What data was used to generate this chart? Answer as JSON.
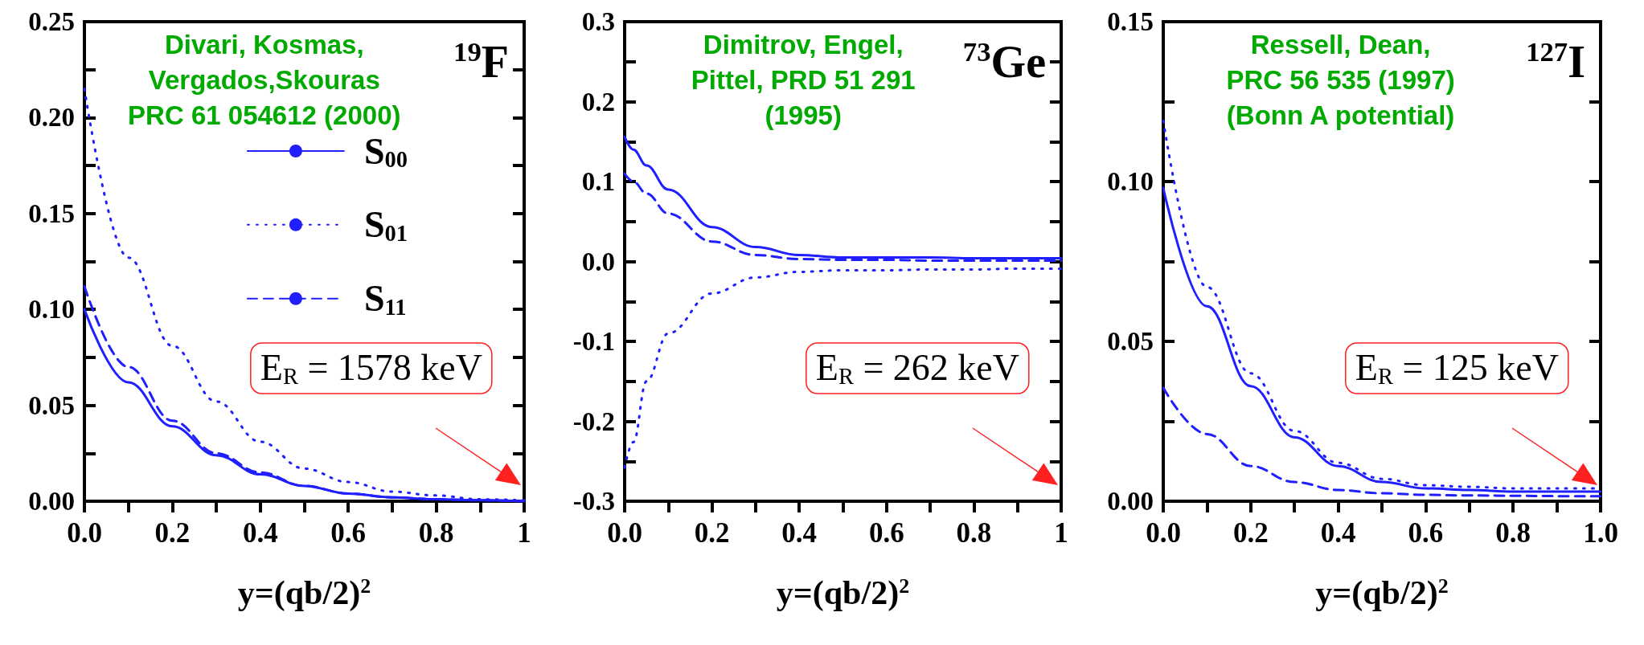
{
  "chart_data": [
    {
      "type": "line",
      "title": "$^{19}$F",
      "xlabel": "y=(qb/2)$^{2}$",
      "annotations": [
        "Divari, Kosmas,\nVergados,Skouras\nPRC 61 054612 (2000)",
        "E$_{R}$ = 1578 keV"
      ],
      "legend": "top right",
      "marker": "none",
      "x": [
        0,
        0.1,
        0.2,
        0.3,
        0.4,
        0.5,
        0.6,
        0.7,
        0.8,
        0.9,
        1
      ],
      "series": [
        {
          "name": "S$_{00}$",
          "color": "#1f1fff",
          "line_style": "solid",
          "values": [
            0.1,
            0.062,
            0.039,
            0.024,
            0.014,
            0.008,
            0.004,
            0.002,
            0.001,
            0.0005,
            0
          ]
        },
        {
          "name": "S$_{01}$",
          "color": "#1f1fff",
          "line_style": "dotted",
          "values": [
            0.215,
            0.127,
            0.081,
            0.052,
            0.031,
            0.017,
            0.01,
            0.005,
            0.003,
            0.001,
            0.0005
          ]
        },
        {
          "name": "S$_{11}$",
          "color": "#1f1fff",
          "line_style": "dashed",
          "values": [
            0.112,
            0.07,
            0.042,
            0.025,
            0.015,
            0.008,
            0.004,
            0.002,
            0.001,
            0.0005,
            0
          ]
        }
      ],
      "xlim": [
        0,
        1
      ],
      "xticks": [
        {
          "value": 0,
          "label": "0.0"
        },
        {
          "value": 0.1,
          "label": null
        },
        {
          "value": 0.2,
          "label": "0.2"
        },
        {
          "value": 0.3,
          "label": null
        },
        {
          "value": 0.4,
          "label": "0.4"
        },
        {
          "value": 0.5,
          "label": null
        },
        {
          "value": 0.6,
          "label": "0.6"
        },
        {
          "value": 0.7,
          "label": null
        },
        {
          "value": 0.8,
          "label": "0.8"
        },
        {
          "value": 0.9,
          "label": null
        },
        1
      ],
      "ylim": [
        0,
        0.25
      ],
      "yticks": [
        {
          "value": 0,
          "label": "0.00"
        },
        {
          "value": 0.025,
          "label": null
        },
        0.05,
        {
          "value": 0.075,
          "label": null
        },
        {
          "value": 0.1,
          "label": "0.10"
        },
        {
          "value": 0.125,
          "label": null
        },
        0.15,
        {
          "value": 0.175,
          "label": null
        },
        {
          "value": 0.2,
          "label": "0.20"
        },
        {
          "value": 0.225,
          "label": null
        },
        0.25
      ]
    },
    {
      "type": "line",
      "title": "$^{73}$Ge",
      "xlabel": "y=(qb/2)$^{2}$",
      "annotations": [
        "Dimitrov, Engel,\nPittel, PRD 51 291\n(1995)",
        "E$_{R}$ = 262 keV"
      ],
      "marker": "none",
      "x": [
        0,
        0.02,
        0.05,
        0.1,
        0.2,
        0.3,
        0.4,
        0.5,
        0.6,
        0.7,
        0.8,
        0.9,
        1
      ],
      "series": [
        {
          "color": "#1f1fff",
          "line_style": "solid",
          "values": [
            0.156,
            0.14,
            0.12,
            0.09,
            0.043,
            0.018,
            0.008,
            0.005,
            0.005,
            0.005,
            0.004,
            0.004,
            0.004
          ]
        },
        {
          "color": "#1f1fff",
          "line_style": "dotted",
          "values": [
            -0.258,
            -0.226,
            -0.15,
            -0.09,
            -0.04,
            -0.02,
            -0.013,
            -0.011,
            -0.011,
            -0.01,
            -0.01,
            -0.009,
            -0.009
          ]
        },
        {
          "color": "#1f1fff",
          "line_style": "dashed",
          "values": [
            0.11,
            0.1,
            0.085,
            0.06,
            0.025,
            0.008,
            0.003,
            0.002,
            0.002,
            0.001,
            0.001,
            0.001,
            0.001
          ]
        }
      ],
      "xlim": [
        0,
        1
      ],
      "xticks": [
        {
          "value": 0,
          "label": "0.0"
        },
        {
          "value": 0.1,
          "label": null
        },
        {
          "value": 0.2,
          "label": "0.2"
        },
        {
          "value": 0.3,
          "label": null
        },
        {
          "value": 0.4,
          "label": "0.4"
        },
        {
          "value": 0.5,
          "label": null
        },
        {
          "value": 0.6,
          "label": "0.6"
        },
        {
          "value": 0.7,
          "label": null
        },
        {
          "value": 0.8,
          "label": "0.8"
        },
        {
          "value": 0.9,
          "label": null
        },
        1
      ],
      "ylim": [
        -0.3,
        0.3
      ],
      "yticks": [
        -0.3,
        {
          "value": -0.25,
          "label": null
        },
        -0.2,
        {
          "value": -0.15,
          "label": null
        },
        -0.1,
        {
          "value": -0.05,
          "label": null
        },
        {
          "value": 0,
          "label": "0.0"
        },
        {
          "value": 0.05,
          "label": null
        },
        0.1,
        {
          "value": 0.15,
          "label": null
        },
        0.2,
        {
          "value": 0.25,
          "label": null
        },
        0.3
      ]
    },
    {
      "type": "line",
      "title": "$^{127}$I",
      "xlabel": "y=(qb/2)$^{2}$",
      "annotations": [
        "Ressell, Dean,\nPRC 56 535 (1997)\n(Bonn A potential)",
        "E$_{R}$ = 125 keV"
      ],
      "marker": "none",
      "x": [
        0,
        0.1,
        0.2,
        0.3,
        0.4,
        0.5,
        0.6,
        0.7,
        0.8,
        0.9,
        1
      ],
      "series": [
        {
          "color": "#1f1fff",
          "line_style": "solid",
          "values": [
            0.098,
            0.061,
            0.036,
            0.02,
            0.011,
            0.006,
            0.004,
            0.0035,
            0.003,
            0.003,
            0.003
          ]
        },
        {
          "color": "#1f1fff",
          "line_style": "dotted",
          "values": [
            0.119,
            0.067,
            0.04,
            0.022,
            0.012,
            0.007,
            0.005,
            0.0045,
            0.004,
            0.004,
            0.004
          ]
        },
        {
          "color": "#1f1fff",
          "line_style": "dashed",
          "values": [
            0.0355,
            0.021,
            0.011,
            0.006,
            0.0035,
            0.0025,
            0.002,
            0.0018,
            0.0017,
            0.0016,
            0.0016
          ]
        }
      ],
      "xlim": [
        0,
        1
      ],
      "xticks": [
        {
          "value": 0,
          "label": "0.0"
        },
        {
          "value": 0.1,
          "label": null
        },
        {
          "value": 0.2,
          "label": "0.2"
        },
        {
          "value": 0.3,
          "label": null
        },
        {
          "value": 0.4,
          "label": "0.4"
        },
        {
          "value": 0.5,
          "label": null
        },
        {
          "value": 0.6,
          "label": "0.6"
        },
        {
          "value": 0.7,
          "label": null
        },
        {
          "value": 0.8,
          "label": "0.8"
        },
        {
          "value": 0.9,
          "label": null
        },
        {
          "value": 1,
          "label": "1.0"
        }
      ],
      "ylim": [
        0,
        0.15
      ],
      "yticks": [
        {
          "value": 0,
          "label": "0.00"
        },
        {
          "value": 0.025,
          "label": null
        },
        0.05,
        {
          "value": 0.075,
          "label": null
        },
        {
          "value": 0.1,
          "label": "0.10"
        },
        {
          "value": 0.125,
          "label": null
        },
        0.15
      ]
    }
  ]
}
